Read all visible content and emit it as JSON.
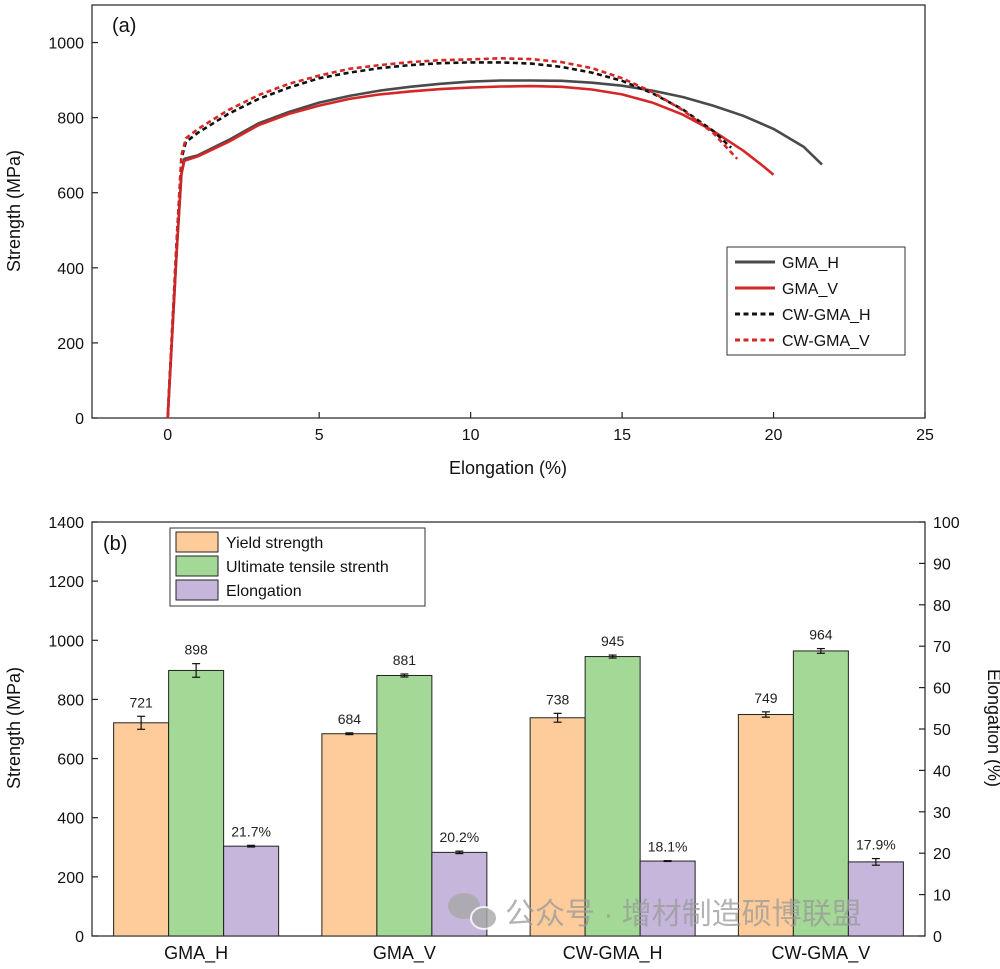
{
  "chart_data": [
    {
      "type": "line",
      "panel_label": "(a)",
      "xlabel": "Elongation (%)",
      "ylabel": "Strength (MPa)",
      "xlim": [
        -2.5,
        25
      ],
      "ylim": [
        0,
        1100
      ],
      "x_ticks": [
        0,
        5,
        10,
        15,
        20,
        25
      ],
      "y_ticks": [
        0,
        200,
        400,
        600,
        800,
        1000
      ],
      "grid": false,
      "legend_placement": "right",
      "series": [
        {
          "name": "GMA_H",
          "style": "solid",
          "color": "#4a4a4a",
          "points": [
            [
              0,
              0
            ],
            [
              0.3,
              450
            ],
            [
              0.45,
              650
            ],
            [
              0.55,
              690
            ],
            [
              1,
              700
            ],
            [
              2,
              740
            ],
            [
              3,
              785
            ],
            [
              4,
              815
            ],
            [
              5,
              840
            ],
            [
              6,
              858
            ],
            [
              7,
              872
            ],
            [
              8,
              882
            ],
            [
              9,
              890
            ],
            [
              10,
              896
            ],
            [
              11,
              899
            ],
            [
              12,
              899
            ],
            [
              13,
              898
            ],
            [
              14,
              893
            ],
            [
              15,
              885
            ],
            [
              16,
              872
            ],
            [
              17,
              855
            ],
            [
              18,
              832
            ],
            [
              19,
              805
            ],
            [
              20,
              770
            ],
            [
              21,
              722
            ],
            [
              21.6,
              675
            ]
          ]
        },
        {
          "name": "GMA_V",
          "style": "solid",
          "color": "#d62728",
          "points": [
            [
              0,
              0
            ],
            [
              0.3,
              450
            ],
            [
              0.45,
              650
            ],
            [
              0.55,
              685
            ],
            [
              1,
              697
            ],
            [
              2,
              735
            ],
            [
              3,
              780
            ],
            [
              4,
              810
            ],
            [
              5,
              832
            ],
            [
              6,
              850
            ],
            [
              7,
              862
            ],
            [
              8,
              870
            ],
            [
              9,
              876
            ],
            [
              10,
              880
            ],
            [
              11,
              883
            ],
            [
              12,
              884
            ],
            [
              13,
              882
            ],
            [
              14,
              875
            ],
            [
              15,
              862
            ],
            [
              16,
              840
            ],
            [
              17,
              808
            ],
            [
              18,
              765
            ],
            [
              19,
              712
            ],
            [
              19.7,
              668
            ],
            [
              20,
              648
            ]
          ]
        },
        {
          "name": "CW-GMA_H",
          "style": "dashed",
          "color": "#111111",
          "points": [
            [
              0,
              0
            ],
            [
              0.3,
              480
            ],
            [
              0.45,
              690
            ],
            [
              0.6,
              735
            ],
            [
              1,
              760
            ],
            [
              2,
              810
            ],
            [
              3,
              850
            ],
            [
              4,
              880
            ],
            [
              5,
              905
            ],
            [
              6,
              920
            ],
            [
              7,
              932
            ],
            [
              8,
              940
            ],
            [
              9,
              945
            ],
            [
              10,
              947
            ],
            [
              11,
              947
            ],
            [
              12,
              944
            ],
            [
              13,
              935
            ],
            [
              14,
              920
            ],
            [
              15,
              898
            ],
            [
              16,
              865
            ],
            [
              17,
              822
            ],
            [
              18,
              765
            ],
            [
              18.6,
              720
            ]
          ]
        },
        {
          "name": "CW-GMA_V",
          "style": "dashed",
          "color": "#d62728",
          "points": [
            [
              0,
              0
            ],
            [
              0.3,
              480
            ],
            [
              0.45,
              700
            ],
            [
              0.6,
              745
            ],
            [
              1,
              770
            ],
            [
              2,
              820
            ],
            [
              3,
              860
            ],
            [
              4,
              890
            ],
            [
              5,
              912
            ],
            [
              6,
              930
            ],
            [
              7,
              940
            ],
            [
              8,
              948
            ],
            [
              9,
              953
            ],
            [
              10,
              955
            ],
            [
              11,
              958
            ],
            [
              12,
              956
            ],
            [
              13,
              948
            ],
            [
              14,
              932
            ],
            [
              15,
              905
            ],
            [
              16,
              868
            ],
            [
              17,
              820
            ],
            [
              18,
              760
            ],
            [
              18.8,
              690
            ]
          ]
        }
      ]
    },
    {
      "type": "bar",
      "panel_label": "(b)",
      "categories": [
        "GMA_H",
        "GMA_V",
        "CW-GMA_H",
        "CW-GMA_V"
      ],
      "ylabel": "Strength (MPa)",
      "y2label": "Elongation (%)",
      "ylim": [
        0,
        1400
      ],
      "y2lim": [
        0,
        100
      ],
      "y_ticks": [
        0,
        200,
        400,
        600,
        800,
        1000,
        1200,
        1400
      ],
      "y2_ticks": [
        0,
        10,
        20,
        30,
        40,
        50,
        60,
        70,
        80,
        90,
        100
      ],
      "legend_placement": "top-left",
      "series": [
        {
          "name": "Yield strength",
          "axis": "left",
          "color": "#fdcc9a",
          "values": [
            721,
            684,
            738,
            749
          ],
          "errors": [
            22,
            3,
            15,
            9
          ],
          "labels": [
            "721",
            "684",
            "738",
            "749"
          ]
        },
        {
          "name": "Ultimate tensile strenth",
          "axis": "left",
          "color": "#a3d897",
          "values": [
            898,
            881,
            945,
            964
          ],
          "errors": [
            23,
            5,
            5,
            8
          ],
          "labels": [
            "898",
            "881",
            "945",
            "964"
          ]
        },
        {
          "name": "Elongation",
          "axis": "right",
          "color": "#c7b6dc",
          "values": [
            21.7,
            20.2,
            18.1,
            17.9
          ],
          "errors": [
            0.2,
            0.3,
            0.1,
            0.8
          ],
          "labels": [
            "21.7%",
            "20.2%",
            "18.1%",
            "17.9%"
          ]
        }
      ]
    }
  ],
  "watermark": {
    "text": "公众号 · 增材制造硕博联盟",
    "icon": "wechat-icon"
  }
}
